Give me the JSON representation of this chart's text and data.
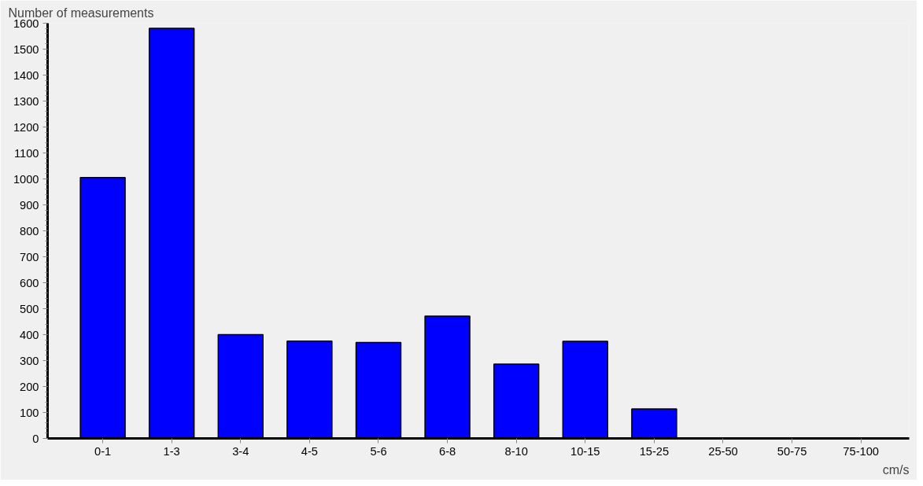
{
  "chart_data": {
    "type": "bar",
    "xlabel": "cm/s",
    "ylabel": "Number of measurements",
    "categories": [
      "0-1",
      "1-3",
      "3-4",
      "4-5",
      "5-6",
      "6-8",
      "8-10",
      "10-15",
      "15-25",
      "25-50",
      "50-75",
      "75-100"
    ],
    "values": [
      1005,
      1580,
      400,
      375,
      370,
      471,
      286,
      374,
      114,
      2,
      2,
      2
    ],
    "color": "#0000ff",
    "ylim": [
      0,
      1600
    ],
    "yticks": [
      0,
      100,
      200,
      300,
      400,
      500,
      600,
      700,
      800,
      900,
      1000,
      1100,
      1200,
      1300,
      1400,
      1500,
      1600
    ],
    "grid": false
  }
}
